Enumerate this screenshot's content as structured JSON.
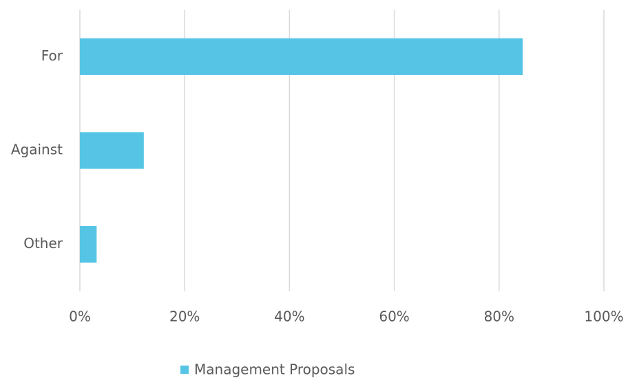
{
  "chart_data": {
    "type": "barh",
    "categories": [
      "For",
      "Against",
      "Other"
    ],
    "series": [
      {
        "name": "Management Proposals",
        "color": "#56c5e5",
        "values": [
          84.5,
          12.2,
          3.2
        ]
      }
    ],
    "xlim": [
      0,
      100
    ],
    "xticks": [
      {
        "value": 0,
        "label": "0%"
      },
      {
        "value": 20,
        "label": "20%"
      },
      {
        "value": 40,
        "label": "40%"
      },
      {
        "value": 60,
        "label": "60%"
      },
      {
        "value": 80,
        "label": "80%"
      },
      {
        "value": 100,
        "label": "100%"
      }
    ],
    "grid": true,
    "legend": "bottom"
  }
}
